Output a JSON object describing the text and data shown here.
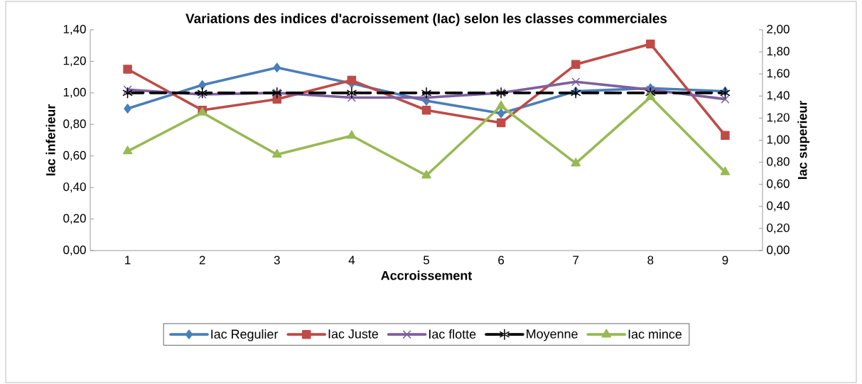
{
  "chart_data": {
    "type": "line",
    "title": "Variations des indices d'acroissement (Iac) selon les classes commerciales",
    "xlabel": "Accroissement",
    "ylabel": "Iac inferieur",
    "y2label": "Iac superieur",
    "categories": [
      "1",
      "2",
      "3",
      "4",
      "5",
      "6",
      "7",
      "8",
      "9"
    ],
    "series": [
      {
        "name": "Iac Regulier",
        "color": "#4a7ebb",
        "marker": "diamond",
        "values": [
          0.9,
          1.05,
          1.16,
          1.06,
          0.95,
          0.87,
          1.01,
          1.03,
          1.01
        ]
      },
      {
        "name": "Iac Juste",
        "color": "#be4b48",
        "marker": "square",
        "values": [
          1.15,
          0.89,
          0.96,
          1.08,
          0.89,
          0.81,
          1.18,
          1.31,
          0.73
        ]
      },
      {
        "name": "Iac flotte",
        "color": "#7d60a0",
        "marker": "cross",
        "values": [
          1.02,
          0.99,
          1.0,
          0.97,
          0.97,
          1.0,
          1.07,
          1.02,
          0.96
        ]
      },
      {
        "name": "Moyenne",
        "color": "#000000",
        "marker": "cross",
        "line_style": "dashed",
        "values": [
          1.0,
          1.0,
          1.0,
          1.0,
          1.0,
          1.0,
          1.0,
          1.0,
          1.0
        ]
      },
      {
        "name": "Iac mince",
        "color": "#98b954",
        "marker": "triangle",
        "axis": "y2",
        "values": [
          0.9,
          1.25,
          0.87,
          1.04,
          0.68,
          1.31,
          0.79,
          1.39,
          0.71
        ]
      }
    ],
    "ylim": [
      0,
      1.4
    ],
    "yticks": [
      {
        "value": 0,
        "label": "0,00"
      },
      {
        "value": 0.2,
        "label": "0,20"
      },
      {
        "value": 0.4,
        "label": "0,40"
      },
      {
        "value": 0.6,
        "label": "0,60"
      },
      {
        "value": 0.8,
        "label": "0,80"
      },
      {
        "value": 1.0,
        "label": "1,00"
      },
      {
        "value": 1.2,
        "label": "1,20"
      },
      {
        "value": 1.4,
        "label": "1,40"
      }
    ],
    "y2lim": [
      0,
      2.0
    ],
    "y2ticks": [
      {
        "value": 0,
        "label": "0,00"
      },
      {
        "value": 0.2,
        "label": "0,20"
      },
      {
        "value": 0.4,
        "label": "0,40"
      },
      {
        "value": 0.6,
        "label": "0,60"
      },
      {
        "value": 0.8,
        "label": "0,80"
      },
      {
        "value": 1.0,
        "label": "1,00"
      },
      {
        "value": 1.2,
        "label": "1,20"
      },
      {
        "value": 1.4,
        "label": "1,40"
      },
      {
        "value": 1.6,
        "label": "1,60"
      },
      {
        "value": 1.8,
        "label": "1,80"
      },
      {
        "value": 2.0,
        "label": "2,00"
      }
    ],
    "legend": "bottom",
    "grid": false
  }
}
